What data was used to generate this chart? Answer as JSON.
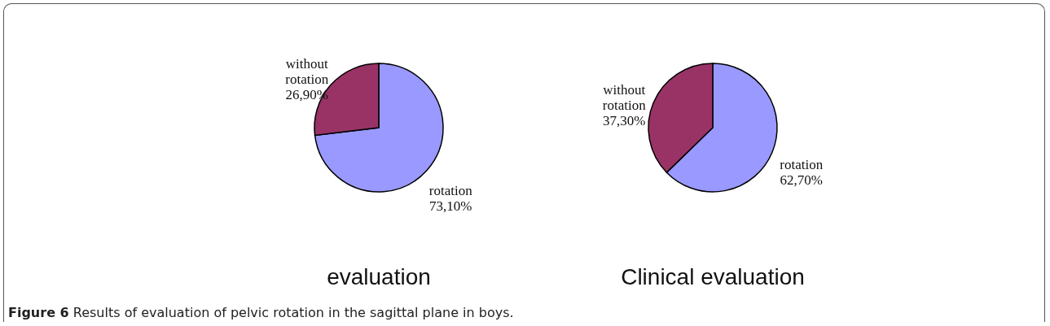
{
  "chart_data": [
    {
      "type": "pie",
      "title": "evaluation",
      "categories": [
        "rotation",
        "without rotation"
      ],
      "values": [
        73.1,
        26.9
      ],
      "colors": [
        "#9999ff",
        "#993366"
      ],
      "value_labels": [
        "73,10%",
        "26,90%"
      ],
      "annotations": [
        "Figure 6 Results of evaluation of pelvic rotation in the sagittal plane in boys."
      ]
    },
    {
      "type": "pie",
      "title": "Clinical evaluation",
      "categories": [
        "rotation",
        "without rotation"
      ],
      "values": [
        62.7,
        37.3
      ],
      "colors": [
        "#9999ff",
        "#993366"
      ],
      "value_labels": [
        "62,70%",
        "37,30%"
      ]
    }
  ]
}
